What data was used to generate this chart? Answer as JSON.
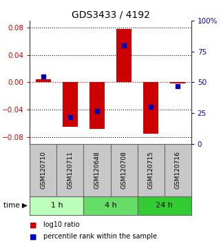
{
  "title": "GDS3433 / 4192",
  "samples": [
    "GSM120710",
    "GSM120711",
    "GSM120648",
    "GSM120708",
    "GSM120715",
    "GSM120716"
  ],
  "time_groups": [
    {
      "label": "1 h",
      "count": 2,
      "color": "#bbffbb"
    },
    {
      "label": "4 h",
      "count": 2,
      "color": "#66dd66"
    },
    {
      "label": "24 h",
      "count": 2,
      "color": "#33cc33"
    }
  ],
  "log10_ratio": [
    0.005,
    -0.065,
    -0.068,
    0.078,
    -0.075,
    -0.002
  ],
  "percentile_rank": [
    55,
    22,
    27,
    80,
    30,
    47
  ],
  "ylim_left": [
    -0.09,
    0.09
  ],
  "ylim_right": [
    0,
    100
  ],
  "left_ticks": [
    -0.08,
    -0.04,
    0,
    0.04,
    0.08
  ],
  "right_ticks": [
    0,
    25,
    50,
    75,
    100
  ],
  "right_tick_labels": [
    "0",
    "25",
    "50",
    "75",
    "100%"
  ],
  "bar_color": "#cc0000",
  "dot_color": "#0000bb",
  "zero_line_color": "#cc0000",
  "bg_color": "#ffffff",
  "label_row_bg": "#c8c8c8",
  "legend_ratio_label": "log10 ratio",
  "legend_pct_label": "percentile rank within the sample",
  "bar_width": 0.55
}
